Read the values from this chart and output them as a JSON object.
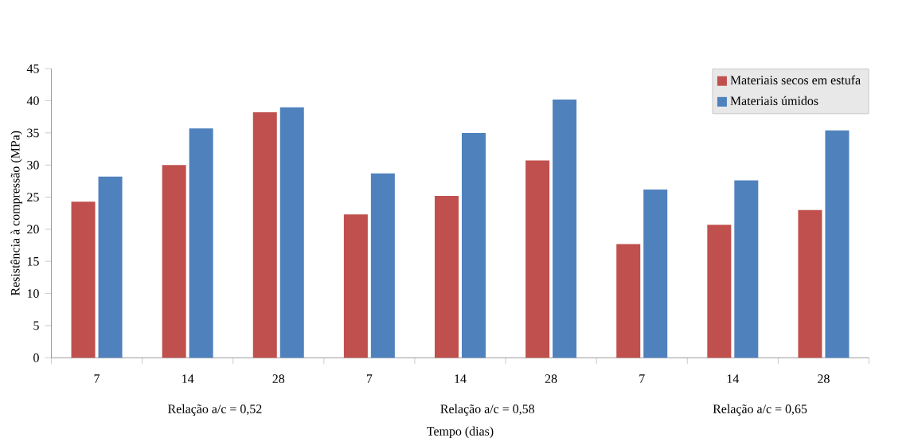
{
  "chart_data": {
    "type": "bar",
    "ylabel": "Resistência à compressão (MPa)",
    "xlabel": "Tempo (dias)",
    "categories": [
      "7",
      "14",
      "28",
      "7",
      "14",
      "28",
      "7",
      "14",
      "28"
    ],
    "series": [
      {
        "name": "Materiais secos em estufa",
        "color": "#c0504d",
        "values": [
          24.3,
          30,
          38.2,
          22.3,
          25.2,
          30.7,
          17.7,
          20.7,
          23
        ]
      },
      {
        "name": "Materiais úmidos",
        "color": "#4f81bd",
        "values": [
          28.2,
          35.7,
          39,
          28.7,
          35,
          40.2,
          26.2,
          27.6,
          35.4
        ]
      }
    ],
    "ylim": [
      0,
      45
    ],
    "yticks": [
      0,
      5,
      10,
      15,
      20,
      25,
      30,
      35,
      40,
      45
    ],
    "annotations": [
      "Relação a/c = 0,52",
      "Relação a/c = 0,58",
      "Relação a/c =  0,65"
    ],
    "legend": "top right",
    "grid": false
  }
}
